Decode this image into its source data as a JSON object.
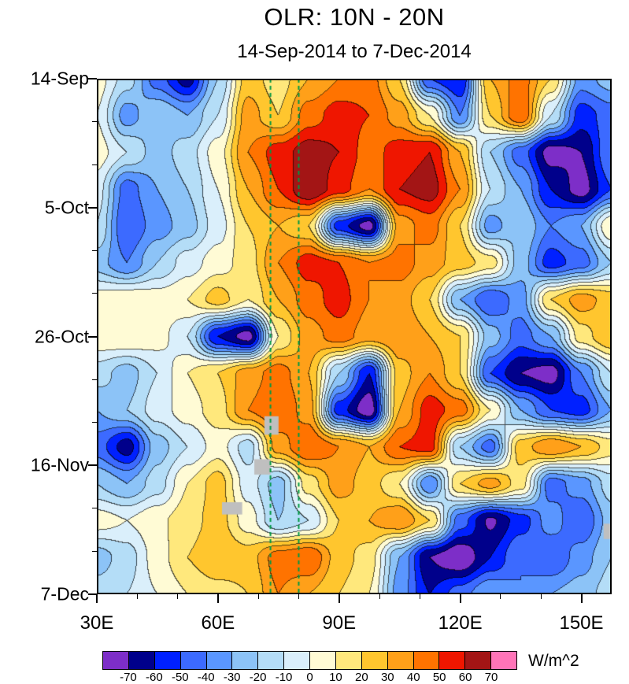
{
  "header": {
    "title": "OLR: 10N - 20N",
    "subtitle": "14-Sep-2014 to 7-Dec-2014"
  },
  "axes": {
    "y_ticks": [
      "14-Sep",
      "5-Oct",
      "26-Oct",
      "16-Nov",
      "7-Dec"
    ],
    "x_ticks": [
      "30E",
      "60E",
      "90E",
      "120E",
      "150E"
    ]
  },
  "colorbar": {
    "unit_label": "W/m^2",
    "tick_labels": [
      "-70",
      "-60",
      "-50",
      "-40",
      "-30",
      "-20",
      "-10",
      "0",
      "10",
      "20",
      "30",
      "40",
      "50",
      "60",
      "70"
    ]
  },
  "chart_data": {
    "type": "heatmap",
    "title": "OLR: 10N - 20N",
    "subtitle": "14-Sep-2014 to 7-Dec-2014",
    "x_range": [
      30,
      157.5
    ],
    "x_tick_values": [
      30,
      60,
      90,
      120,
      150
    ],
    "x_minor_values": [
      40,
      50,
      70,
      80,
      100,
      110,
      130,
      140
    ],
    "y_range_days": [
      0,
      84
    ],
    "y_tick_days": [
      0,
      21,
      42,
      63,
      84
    ],
    "y_minor_days": [
      7,
      14,
      28,
      35,
      49,
      56,
      70,
      77
    ],
    "levels": [
      -70,
      -60,
      -50,
      -40,
      -30,
      -20,
      -10,
      0,
      10,
      20,
      30,
      40,
      50,
      60,
      70
    ],
    "colors": [
      "#7d2ec8",
      "#00008b",
      "#0020ff",
      "#3c6aff",
      "#5a96ff",
      "#8cc3f7",
      "#b4ddf7",
      "#daeffb",
      "#fffbd5",
      "#ffe87c",
      "#ffc62e",
      "#ffa019",
      "#ff7300",
      "#ef1600",
      "#a31515",
      "#ff74b8"
    ],
    "missing_color": "#bfbfbf",
    "reference_lines": {
      "color": "#009944",
      "style": "dashed",
      "x_values": [
        73,
        80
      ]
    },
    "missing_regions": [
      {
        "lon": [
          71.5,
          75
        ],
        "day": [
          55,
          58
        ]
      },
      {
        "lon": [
          69,
          73
        ],
        "day": [
          62,
          64.5
        ]
      },
      {
        "lon": [
          61,
          66
        ],
        "day": [
          69,
          71
        ]
      },
      {
        "lon": [
          155.5,
          157.5
        ],
        "day": [
          72.5,
          75
        ]
      }
    ],
    "grid": {
      "lons": [
        30,
        37.5,
        45,
        52.5,
        60,
        67.5,
        75,
        82.5,
        90,
        97.5,
        105,
        112.5,
        120,
        127.5,
        135,
        142.5,
        150,
        157.5
      ],
      "days": [
        0,
        6,
        12,
        18,
        24,
        30,
        36,
        42,
        48,
        54,
        60,
        66,
        72,
        78,
        84
      ],
      "values": [
        [
          5,
          -15,
          -45,
          -65,
          -20,
          25,
          15,
          30,
          40,
          45,
          20,
          -50,
          -60,
          30,
          45,
          20,
          -35,
          -25
        ],
        [
          0,
          -35,
          -20,
          -30,
          -10,
          35,
          20,
          45,
          55,
          50,
          35,
          10,
          -40,
          20,
          50,
          -10,
          -55,
          -45
        ],
        [
          5,
          -10,
          -25,
          -15,
          5,
          40,
          55,
          65,
          60,
          45,
          55,
          60,
          30,
          -20,
          -45,
          -75,
          -70,
          -40
        ],
        [
          -5,
          -45,
          -30,
          -20,
          0,
          30,
          50,
          70,
          55,
          40,
          60,
          65,
          40,
          -10,
          -30,
          -60,
          -75,
          -50
        ],
        [
          -10,
          -50,
          -35,
          -25,
          -5,
          20,
          30,
          20,
          -55,
          -75,
          35,
          45,
          20,
          -35,
          -20,
          -40,
          -30,
          10
        ],
        [
          -25,
          -40,
          -20,
          -5,
          5,
          15,
          40,
          55,
          50,
          40,
          45,
          35,
          25,
          15,
          -25,
          -55,
          -45,
          -20
        ],
        [
          5,
          8,
          5,
          10,
          25,
          10,
          30,
          45,
          55,
          40,
          35,
          20,
          -30,
          -50,
          -35,
          20,
          35,
          25
        ],
        [
          8,
          10,
          5,
          -10,
          -60,
          -75,
          10,
          35,
          45,
          35,
          40,
          30,
          20,
          -25,
          -45,
          -30,
          15,
          30
        ],
        [
          -15,
          -25,
          -10,
          10,
          20,
          35,
          45,
          30,
          -20,
          -60,
          25,
          40,
          20,
          -50,
          -70,
          -75,
          -40,
          -10
        ],
        [
          -30,
          -20,
          -5,
          5,
          15,
          40,
          50,
          35,
          -55,
          -78,
          30,
          55,
          45,
          10,
          -30,
          -50,
          -55,
          -30
        ],
        [
          -45,
          -65,
          -25,
          -10,
          5,
          -15,
          35,
          50,
          40,
          30,
          50,
          55,
          -20,
          -45,
          25,
          40,
          30,
          15
        ],
        [
          -20,
          -30,
          -15,
          10,
          25,
          -5,
          -25,
          15,
          35,
          25,
          10,
          -40,
          20,
          35,
          15,
          -45,
          -35,
          -15
        ],
        [
          5,
          0,
          8,
          15,
          25,
          5,
          -20,
          -10,
          20,
          30,
          40,
          20,
          -45,
          -72,
          -55,
          -35,
          -50,
          -25
        ],
        [
          -25,
          -15,
          5,
          20,
          30,
          25,
          45,
          50,
          25,
          15,
          -30,
          -70,
          -80,
          -60,
          -40,
          -50,
          -35,
          -20
        ],
        [
          -15,
          -10,
          0,
          10,
          15,
          20,
          40,
          30,
          20,
          10,
          -35,
          -60,
          -45,
          -30,
          -40,
          -30,
          -25,
          -15
        ]
      ]
    }
  }
}
